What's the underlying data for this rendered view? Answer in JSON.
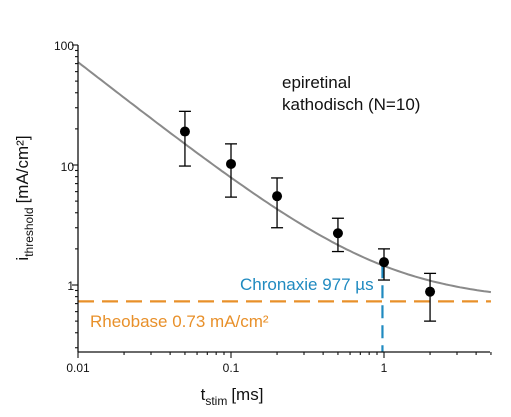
{
  "chart_data": {
    "type": "scatter",
    "x_scale": "log",
    "y_scale": "log",
    "xlim": [
      0.01,
      5
    ],
    "ylim": [
      0.3,
      100
    ],
    "x_ticks": [
      "0.01",
      "0.1",
      "1"
    ],
    "y_ticks": [
      "100",
      "10",
      "1"
    ],
    "xlabel_main": "t",
    "xlabel_sub": "stim",
    "xlabel_unit": "[ms]",
    "ylabel_main": "i",
    "ylabel_sub": "threshold",
    "ylabel_unit": "[mA/cm²]",
    "annotation_line1": "epiretinal",
    "annotation_line2": "kathodisch (N=10)",
    "chronaxie_label": "Chronaxie 977 µs",
    "rheobase_label": "Rheobase 0.73 mA/cm²",
    "rheobase": 0.73,
    "chronaxie_ms": 0.977,
    "colors": {
      "data": "#000000",
      "fit": "#8a8a8a",
      "chronaxie": "#1f8ac0",
      "rheobase": "#e8902a"
    },
    "points": [
      {
        "x": 0.05,
        "y": 19.0,
        "lo": 9.8,
        "hi": 28.0
      },
      {
        "x": 0.1,
        "y": 10.2,
        "lo": 5.4,
        "hi": 15.0
      },
      {
        "x": 0.2,
        "y": 5.5,
        "lo": 3.0,
        "hi": 7.8
      },
      {
        "x": 0.5,
        "y": 2.7,
        "lo": 1.9,
        "hi": 3.6
      },
      {
        "x": 1.0,
        "y": 1.55,
        "lo": 1.1,
        "hi": 2.0
      },
      {
        "x": 2.0,
        "y": 0.88,
        "lo": 0.5,
        "hi": 1.25
      }
    ]
  }
}
